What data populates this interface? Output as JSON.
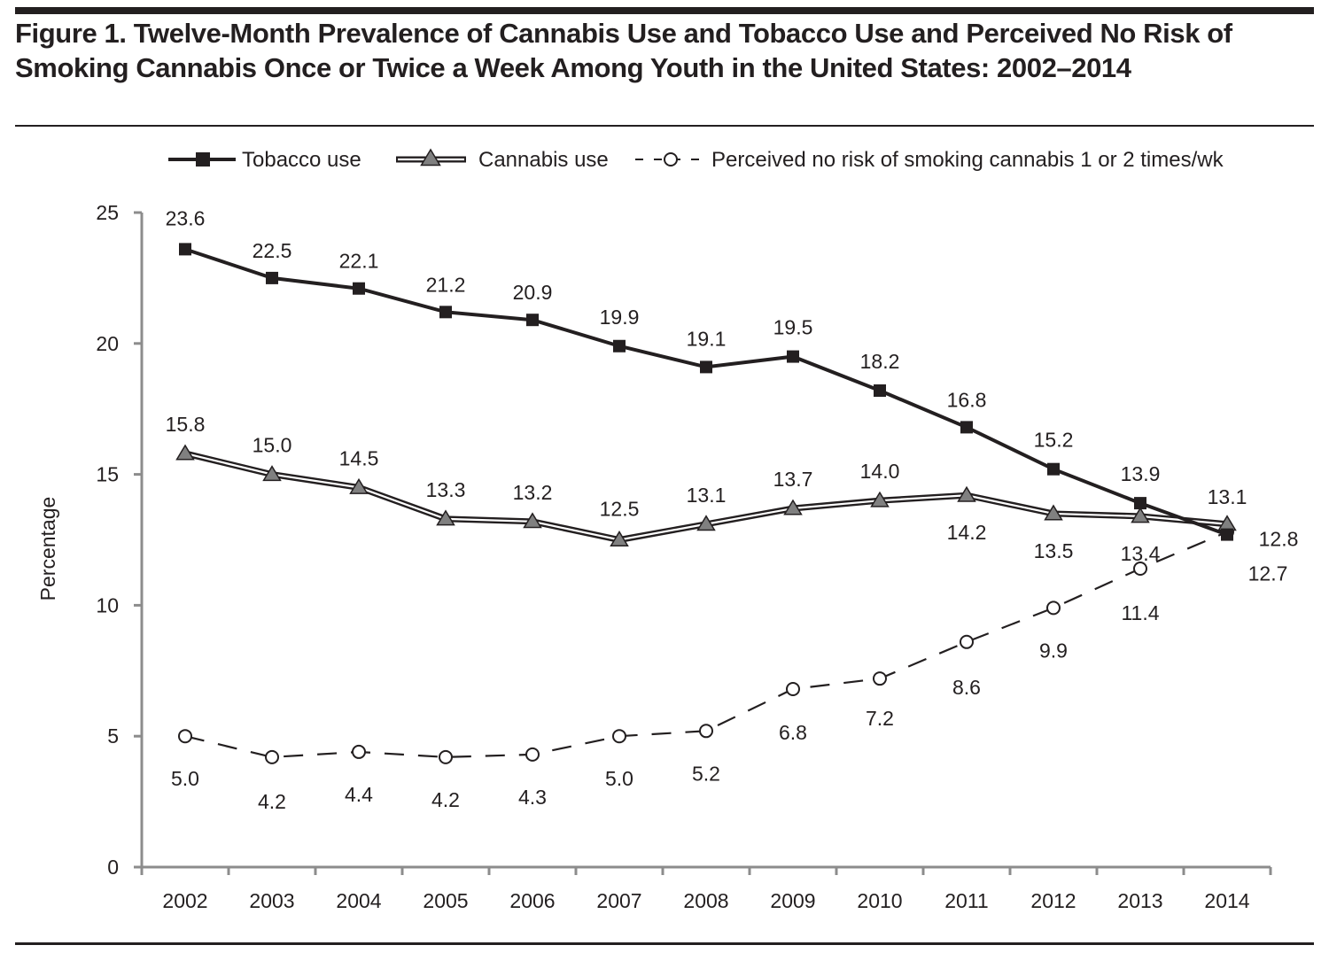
{
  "figure": {
    "title": "Figure 1. Twelve-Month Prevalence of Cannabis Use and Tobacco Use and Perceived No Risk of Smoking Cannabis Once or Twice a Week Among Youth in the United States: 2002–2014"
  },
  "chart_data": {
    "type": "line",
    "title": "Figure 1. Twelve-Month Prevalence of Cannabis Use and Tobacco Use and Perceived No Risk of Smoking Cannabis Once or Twice a Week Among Youth in the United States: 2002–2014",
    "xlabel": "",
    "ylabel": "Percentage",
    "x": [
      "2002",
      "2003",
      "2004",
      "2005",
      "2006",
      "2007",
      "2008",
      "2009",
      "2010",
      "2011",
      "2012",
      "2013",
      "2014"
    ],
    "ylim": [
      0,
      25
    ],
    "yticks": [
      "0",
      "5",
      "10",
      "15",
      "20",
      "25"
    ],
    "grid": false,
    "legend_position": "top",
    "series": [
      {
        "name": "Tobacco use",
        "marker": "square",
        "line": "solid",
        "color": "#231f20",
        "values": [
          23.6,
          22.5,
          22.1,
          21.2,
          20.9,
          19.9,
          19.1,
          19.5,
          18.2,
          16.8,
          15.2,
          13.9,
          12.7
        ],
        "labels": [
          "23.6",
          "22.5",
          "22.1",
          "21.2",
          "20.9",
          "19.9",
          "19.1",
          "19.5",
          "18.2",
          "16.8",
          "15.2",
          "13.9",
          "12.7"
        ]
      },
      {
        "name": "Cannabis use",
        "marker": "triangle",
        "line": "double",
        "color": "#808080",
        "values": [
          15.8,
          15.0,
          14.5,
          13.3,
          13.2,
          12.5,
          13.1,
          13.7,
          14.0,
          14.2,
          13.5,
          13.4,
          13.1
        ],
        "labels": [
          "15.8",
          "15.0",
          "14.5",
          "13.3",
          "13.2",
          "12.5",
          "13.1",
          "13.7",
          "14.0",
          "14.2",
          "13.5",
          "13.4",
          "13.1"
        ]
      },
      {
        "name": "Perceived no risk of smoking cannabis 1 or 2 times/wk",
        "marker": "open-circle",
        "line": "dashed",
        "color": "#231f20",
        "values": [
          5.0,
          4.2,
          4.4,
          4.2,
          4.3,
          5.0,
          5.2,
          6.8,
          7.2,
          8.6,
          9.9,
          11.4,
          12.8
        ],
        "labels": [
          "5.0",
          "4.2",
          "4.4",
          "4.2",
          "4.3",
          "5.0",
          "5.2",
          "6.8",
          "7.2",
          "8.6",
          "9.9",
          "11.4",
          "12.8"
        ]
      }
    ]
  }
}
